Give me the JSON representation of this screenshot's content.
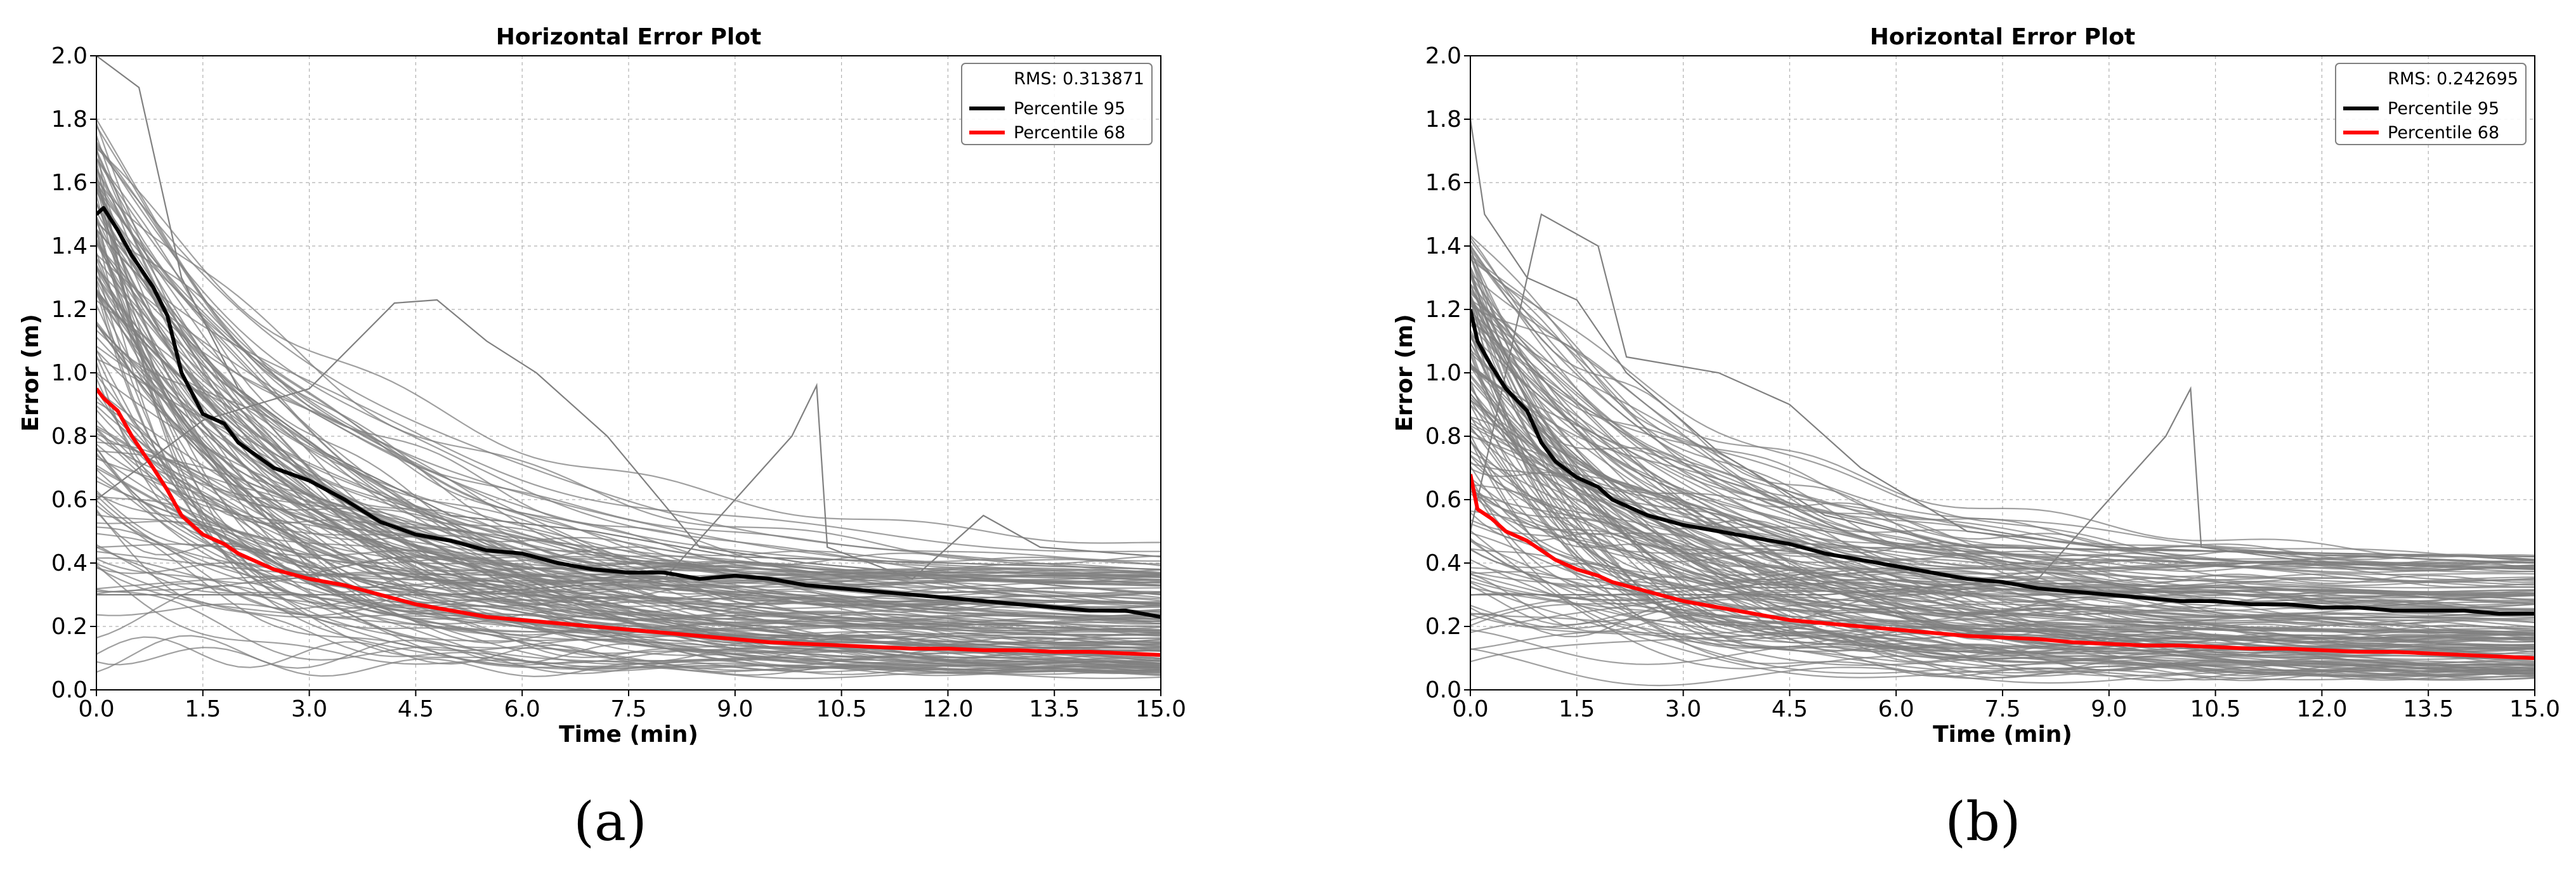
{
  "colors": {
    "trajectories": "#808080",
    "percentile95": "#000000",
    "percentile68": "#ff0000",
    "grid": "#b0b0b0"
  },
  "chart_data": [
    {
      "type": "line",
      "panel_label": "(a)",
      "title": "Horizontal Error Plot",
      "xlabel": "Time (min)",
      "ylabel": "Error (m)",
      "xlim": [
        0,
        15
      ],
      "ylim": [
        0,
        2
      ],
      "xticks": [
        "0.0",
        "1.5",
        "3.0",
        "4.5",
        "6.0",
        "7.5",
        "9.0",
        "10.5",
        "12.0",
        "13.5",
        "15.0"
      ],
      "yticks": [
        "0.0",
        "0.2",
        "0.4",
        "0.6",
        "0.8",
        "1.0",
        "1.2",
        "1.4",
        "1.6",
        "1.8",
        "2.0"
      ],
      "grid": true,
      "legend_position": "top-right",
      "legend": {
        "rms": "RMS: 0.313871",
        "p95": "Percentile 95",
        "p68": "Percentile 68"
      },
      "series": [
        {
          "name": "Percentile 95",
          "color": "#000000",
          "x": [
            0,
            0.1,
            0.3,
            0.5,
            0.8,
            1.0,
            1.2,
            1.5,
            1.8,
            2.0,
            2.5,
            3.0,
            3.5,
            4.0,
            4.5,
            5.0,
            5.5,
            6.0,
            6.5,
            7.0,
            7.5,
            8.0,
            8.5,
            9.0,
            9.5,
            10.0,
            10.5,
            11.0,
            11.5,
            12.0,
            12.5,
            13.0,
            13.5,
            14.0,
            14.5,
            15.0
          ],
          "y": [
            1.5,
            1.52,
            1.45,
            1.37,
            1.27,
            1.18,
            1.0,
            0.87,
            0.84,
            0.78,
            0.7,
            0.66,
            0.6,
            0.53,
            0.49,
            0.47,
            0.44,
            0.43,
            0.4,
            0.38,
            0.37,
            0.37,
            0.35,
            0.36,
            0.35,
            0.33,
            0.32,
            0.31,
            0.3,
            0.29,
            0.28,
            0.27,
            0.26,
            0.25,
            0.25,
            0.23
          ]
        },
        {
          "name": "Percentile 68",
          "color": "#ff0000",
          "x": [
            0,
            0.1,
            0.3,
            0.5,
            0.8,
            1.0,
            1.2,
            1.5,
            1.8,
            2.0,
            2.5,
            3.0,
            3.5,
            4.0,
            4.5,
            5.0,
            5.5,
            6.0,
            6.5,
            7.0,
            7.5,
            8.0,
            8.5,
            9.0,
            9.5,
            10.0,
            10.5,
            11.0,
            11.5,
            12.0,
            12.5,
            13.0,
            13.5,
            14.0,
            14.5,
            15.0
          ],
          "y": [
            0.95,
            0.92,
            0.88,
            0.8,
            0.7,
            0.63,
            0.55,
            0.49,
            0.46,
            0.43,
            0.38,
            0.35,
            0.33,
            0.3,
            0.27,
            0.25,
            0.23,
            0.22,
            0.21,
            0.2,
            0.19,
            0.18,
            0.17,
            0.16,
            0.15,
            0.145,
            0.14,
            0.135,
            0.13,
            0.13,
            0.125,
            0.125,
            0.12,
            0.12,
            0.115,
            0.11
          ]
        }
      ]
    },
    {
      "type": "line",
      "panel_label": "(b)",
      "title": "Horizontal Error Plot",
      "xlabel": "Time (min)",
      "ylabel": "Error (m)",
      "xlim": [
        0,
        15
      ],
      "ylim": [
        0,
        2
      ],
      "xticks": [
        "0.0",
        "1.5",
        "3.0",
        "4.5",
        "6.0",
        "7.5",
        "9.0",
        "10.5",
        "12.0",
        "13.5",
        "15.0"
      ],
      "yticks": [
        "0.0",
        "0.2",
        "0.4",
        "0.6",
        "0.8",
        "1.0",
        "1.2",
        "1.4",
        "1.6",
        "1.8",
        "2.0"
      ],
      "grid": true,
      "legend_position": "top-right",
      "legend": {
        "rms": "RMS: 0.242695",
        "p95": "Percentile 95",
        "p68": "Percentile 68"
      },
      "series": [
        {
          "name": "Percentile 95",
          "color": "#000000",
          "x": [
            0,
            0.1,
            0.3,
            0.5,
            0.8,
            1.0,
            1.2,
            1.5,
            1.8,
            2.0,
            2.5,
            3.0,
            3.5,
            4.0,
            4.5,
            5.0,
            5.5,
            6.0,
            6.5,
            7.0,
            7.5,
            8.0,
            8.5,
            9.0,
            9.5,
            10.0,
            10.5,
            11.0,
            11.5,
            12.0,
            12.5,
            13.0,
            13.5,
            14.0,
            14.5,
            15.0
          ],
          "y": [
            1.2,
            1.1,
            1.02,
            0.95,
            0.88,
            0.78,
            0.72,
            0.67,
            0.64,
            0.6,
            0.55,
            0.52,
            0.5,
            0.48,
            0.46,
            0.43,
            0.41,
            0.39,
            0.37,
            0.35,
            0.34,
            0.32,
            0.31,
            0.3,
            0.29,
            0.28,
            0.28,
            0.27,
            0.27,
            0.26,
            0.26,
            0.25,
            0.25,
            0.25,
            0.24,
            0.24
          ]
        },
        {
          "name": "Percentile 68",
          "color": "#ff0000",
          "x": [
            0,
            0.1,
            0.3,
            0.5,
            0.8,
            1.0,
            1.2,
            1.5,
            1.8,
            2.0,
            2.5,
            3.0,
            3.5,
            4.0,
            4.5,
            5.0,
            5.5,
            6.0,
            6.5,
            7.0,
            7.5,
            8.0,
            8.5,
            9.0,
            9.5,
            10.0,
            10.5,
            11.0,
            11.5,
            12.0,
            12.5,
            13.0,
            13.5,
            14.0,
            14.5,
            15.0
          ],
          "y": [
            0.68,
            0.57,
            0.54,
            0.5,
            0.47,
            0.44,
            0.41,
            0.38,
            0.36,
            0.34,
            0.31,
            0.28,
            0.26,
            0.24,
            0.22,
            0.21,
            0.2,
            0.19,
            0.18,
            0.17,
            0.165,
            0.16,
            0.15,
            0.145,
            0.14,
            0.14,
            0.135,
            0.13,
            0.13,
            0.125,
            0.12,
            0.12,
            0.115,
            0.11,
            0.105,
            0.1
          ]
        }
      ]
    }
  ]
}
